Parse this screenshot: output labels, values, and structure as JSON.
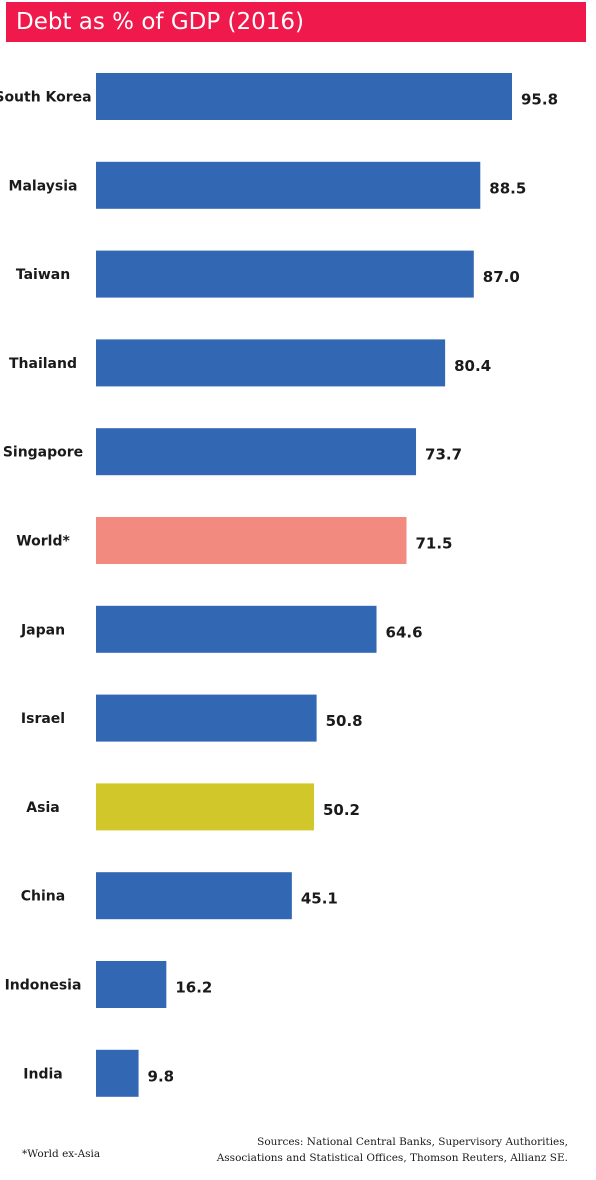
{
  "chart_data": {
    "type": "bar",
    "orientation": "horizontal",
    "title": "Debt as % of GDP (2016)",
    "categories": [
      "South Korea",
      "Malaysia",
      "Taiwan",
      "Thailand",
      "Singapore",
      "World*",
      "Japan",
      "Israel",
      "Asia",
      "China",
      "Indonesia",
      "India"
    ],
    "values": [
      95.8,
      88.5,
      87.0,
      80.4,
      73.7,
      71.5,
      64.6,
      50.8,
      50.2,
      45.1,
      16.2,
      9.8
    ],
    "value_labels": [
      "95.8",
      "88.5",
      "87.0",
      "80.4",
      "73.7",
      "71.5",
      "64.6",
      "50.8",
      "50.2",
      "45.1",
      "16.2",
      "9.8"
    ],
    "colors": [
      "#3167b3",
      "#3167b3",
      "#3167b3",
      "#3167b3",
      "#3167b3",
      "#f28a7f",
      "#3167b3",
      "#3167b3",
      "#d2c72a",
      "#3167b3",
      "#3167b3",
      "#3167b3"
    ],
    "xlim": [
      0,
      100
    ],
    "grid": false,
    "legend": "none"
  },
  "colors": {
    "title_background": "#f0194b",
    "default_bar": "#3167b3",
    "world_bar": "#f28a7f",
    "asia_bar": "#d2c72a"
  },
  "footnote": "*World ex-Asia",
  "sources": {
    "line1": "Sources: National Central Banks, Supervisory Authorities,",
    "line2": "Associations and Statistical Offices, Thomson Reuters, Allianz SE."
  }
}
